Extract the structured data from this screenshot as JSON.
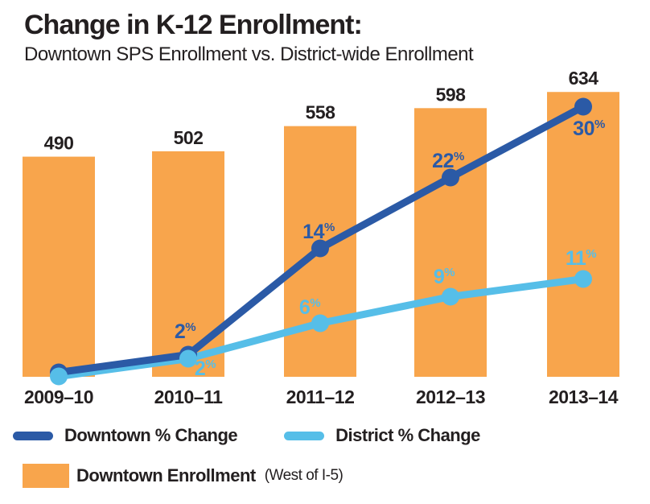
{
  "title": "Change in K-12 Enrollment:",
  "subtitle": "Downtown SPS Enrollment vs. District-wide Enrollment",
  "colors": {
    "orange": "#F8A54C",
    "dark_blue": "#2B5AA6",
    "light_blue": "#56BEE8",
    "text": "#231F20"
  },
  "chart_data": {
    "type": "bar+line",
    "categories": [
      "2009–10",
      "2010–11",
      "2011–12",
      "2012–13",
      "2013–14"
    ],
    "bars": {
      "name": "Downtown Enrollment (West of I-5)",
      "values": [
        490,
        502,
        558,
        598,
        634
      ],
      "color_key": "orange"
    },
    "series": [
      {
        "name": "Downtown % Change",
        "values": [
          0,
          2,
          14,
          22,
          30
        ],
        "point_labels": [
          "",
          "2%",
          "14%",
          "22%",
          "30%"
        ],
        "color_key": "dark_blue"
      },
      {
        "name": "District % Change",
        "values": [
          0,
          2,
          6,
          9,
          11
        ],
        "point_labels": [
          "",
          "2%",
          "6%",
          "9%",
          "11%"
        ],
        "color_key": "light_blue"
      }
    ],
    "xlabel": "",
    "ylabel": "",
    "legend_position": "bottom",
    "grid": false
  },
  "legend": {
    "line_items": [
      {
        "label": "Downtown % Change",
        "color_key": "dark_blue"
      },
      {
        "label": "District % Change",
        "color_key": "light_blue"
      }
    ],
    "bar_item": {
      "label_bold": "Downtown Enrollment",
      "label_note": "(West of I-5)",
      "color_key": "orange"
    }
  }
}
